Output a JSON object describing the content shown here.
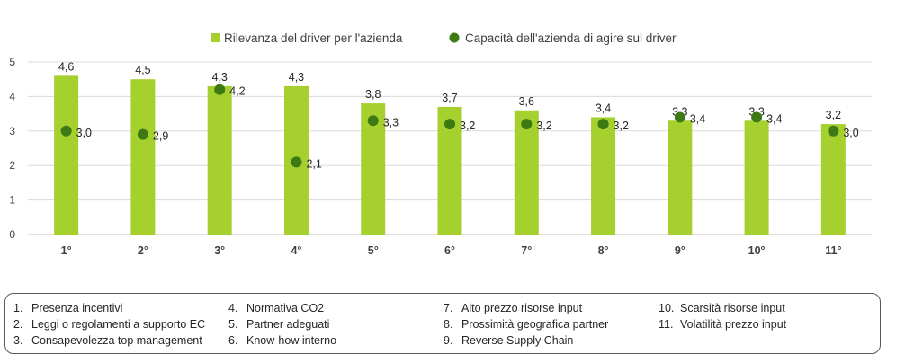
{
  "chart_data": {
    "type": "bar",
    "categories": [
      "1°",
      "2°",
      "3°",
      "4°",
      "5°",
      "6°",
      "7°",
      "8°",
      "9°",
      "10°",
      "11°"
    ],
    "series": [
      {
        "name": "Rilevanza del driver per l'azienda",
        "kind": "bar",
        "color": "#a5d02e",
        "values": [
          4.6,
          4.5,
          4.3,
          4.3,
          3.8,
          3.7,
          3.6,
          3.4,
          3.3,
          3.3,
          3.2
        ],
        "labels": [
          "4,6",
          "4,5",
          "4,3",
          "4,3",
          "3,8",
          "3,7",
          "3,6",
          "3,4",
          "3,3",
          "3,3",
          "3,2"
        ]
      },
      {
        "name": "Capacità dell'azienda di agire sul driver",
        "kind": "scatter",
        "color": "#3d7a14",
        "values": [
          3.0,
          2.9,
          4.2,
          2.1,
          3.3,
          3.2,
          3.2,
          3.2,
          3.4,
          3.4,
          3.0
        ],
        "labels": [
          "3,0",
          "2,9",
          "4,2",
          "2,1",
          "3,3",
          "3,2",
          "3,2",
          "3,2",
          "3,4",
          "3,4",
          "3,0"
        ]
      }
    ],
    "yticks": [
      "0",
      "1",
      "2",
      "3",
      "4",
      "5"
    ],
    "ylim": [
      0,
      5
    ],
    "grid": true,
    "legend_position": "top"
  },
  "legend_notes": [
    [
      {
        "num": "1.",
        "text": "Presenza incentivi"
      },
      {
        "num": "2.",
        "text": "Leggi o regolamenti a supporto EC"
      },
      {
        "num": "3.",
        "text": "Consapevolezza top management"
      }
    ],
    [
      {
        "num": "4.",
        "text": "Normativa CO2"
      },
      {
        "num": "5.",
        "text": "Partner adeguati"
      },
      {
        "num": "6.",
        "text": "Know-how interno"
      }
    ],
    [
      {
        "num": "7.",
        "text": "Alto prezzo risorse input"
      },
      {
        "num": "8.",
        "text": "Prossimità geografica partner"
      },
      {
        "num": "9.",
        "text": "Reverse Supply Chain"
      }
    ],
    [
      {
        "num": "10.",
        "text": "Scarsità risorse input"
      },
      {
        "num": "11.",
        "text": "Volatilità prezzo input"
      }
    ]
  ]
}
